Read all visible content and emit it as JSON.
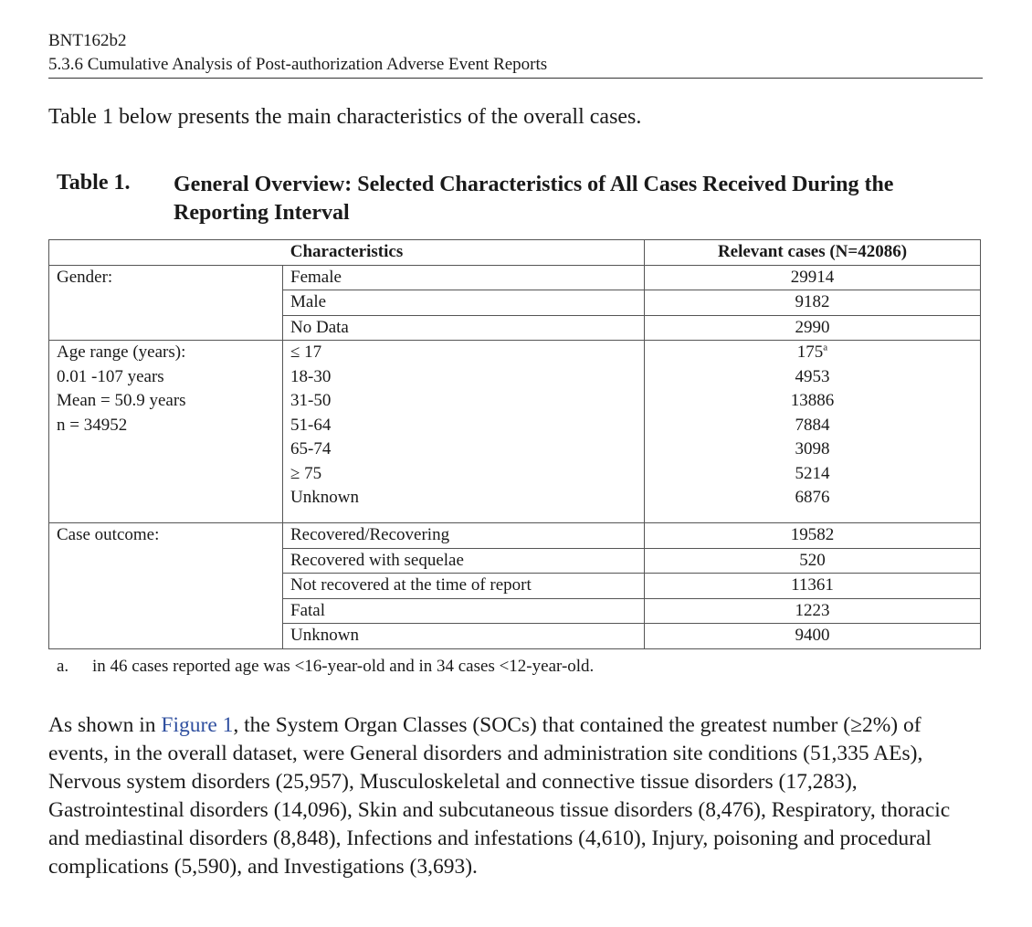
{
  "header": {
    "product": "BNT162b2",
    "section": "5.3.6 Cumulative Analysis of Post-authorization Adverse Event Reports"
  },
  "intro": "Table 1 below presents the main characteristics of the overall cases.",
  "table": {
    "label": "Table 1.",
    "caption": "General Overview: Selected Characteristics of All Cases Received During the Reporting Interval",
    "columns": [
      "Characteristics",
      "Relevant cases (N=42086)"
    ],
    "groups": [
      {
        "label": [
          "Gender:"
        ],
        "rows": [
          {
            "name": "Female",
            "cases": 29914
          },
          {
            "name": "Male",
            "cases": 9182
          },
          {
            "name": "No Data",
            "cases": 2990
          }
        ]
      },
      {
        "label": [
          "Age range (years):",
          "0.01 -107 years",
          "Mean = 50.9 years",
          "n = 34952"
        ],
        "rows": [
          {
            "name": "≤ 17",
            "cases": 175,
            "note": "a"
          },
          {
            "name": "18-30",
            "cases": 4953
          },
          {
            "name": "31-50",
            "cases": 13886
          },
          {
            "name": "51-64",
            "cases": 7884
          },
          {
            "name": "65-74",
            "cases": 3098
          },
          {
            "name": "≥ 75",
            "cases": 5214
          },
          {
            "name": "Unknown",
            "cases": 6876
          }
        ]
      },
      {
        "label": [
          "Case outcome:"
        ],
        "rows": [
          {
            "name": "Recovered/Recovering",
            "cases": 19582
          },
          {
            "name": "Recovered with sequelae",
            "cases": 520
          },
          {
            "name": "Not recovered at the time of report",
            "cases": 11361
          },
          {
            "name": "Fatal",
            "cases": 1223
          },
          {
            "name": "Unknown",
            "cases": 9400
          }
        ]
      }
    ],
    "footnote": {
      "marker": "a.",
      "text": "in 46 cases reported age was <16-year-old and in 34 cases <12-year-old."
    }
  },
  "paragraph": {
    "before": "As shown in ",
    "link": "Figure 1",
    "after": ", the System Organ Classes (SOCs) that contained the greatest number (≥2%) of events, in the overall dataset, were General disorders and administration site conditions (51,335 AEs), Nervous system disorders (25,957), Musculoskeletal and connective tissue disorders (17,283), Gastrointestinal disorders (14,096), Skin and subcutaneous tissue disorders (8,476), Respiratory, thoracic and mediastinal disorders (8,848), Infections and infestations (4,610), Injury, poisoning and procedural complications (5,590), and Investigations (3,693)."
  }
}
